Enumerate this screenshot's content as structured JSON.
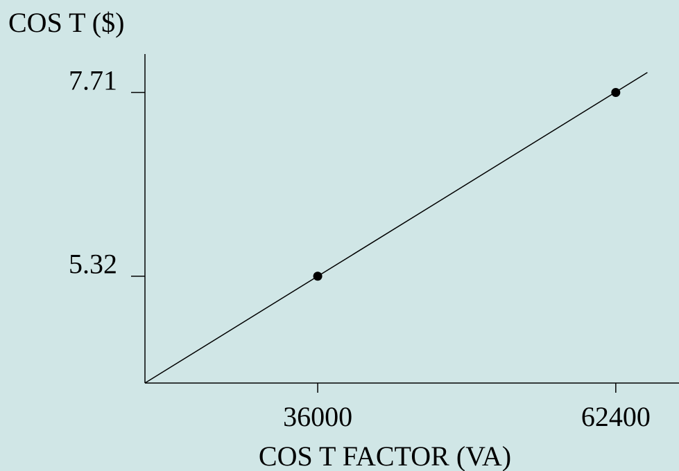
{
  "chart_data": {
    "type": "line",
    "title": "",
    "ylabel": "COS T ($)",
    "xlabel": "COS T FACTOR  (VA)",
    "x_ticks": [
      {
        "value": 36000,
        "label": "36000"
      },
      {
        "value": 62400,
        "label": "62400"
      }
    ],
    "y_ticks": [
      {
        "value": 5.32,
        "label": "5.32"
      },
      {
        "value": 7.71,
        "label": "7.71"
      }
    ],
    "points": [
      {
        "x": 36000,
        "y": 5.32
      },
      {
        "x": 62400,
        "y": 7.71
      }
    ],
    "fit_line": {
      "x_start": 20700,
      "y_start": 3.93,
      "x_end": 65200,
      "y_end": 7.97
    },
    "xlim": [
      20700,
      68000
    ],
    "ylim": [
      3.93,
      8.21
    ],
    "grid": false,
    "colors": {
      "background": "#d0e6e6",
      "ink": "#000000"
    }
  }
}
